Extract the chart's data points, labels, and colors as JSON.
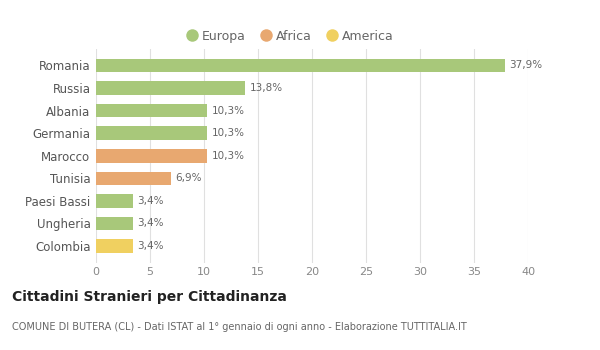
{
  "categories": [
    "Romania",
    "Russia",
    "Albania",
    "Germania",
    "Marocco",
    "Tunisia",
    "Paesi Bassi",
    "Ungheria",
    "Colombia"
  ],
  "values": [
    37.9,
    13.8,
    10.3,
    10.3,
    10.3,
    6.9,
    3.4,
    3.4,
    3.4
  ],
  "labels": [
    "37,9%",
    "13,8%",
    "10,3%",
    "10,3%",
    "10,3%",
    "6,9%",
    "3,4%",
    "3,4%",
    "3,4%"
  ],
  "colors": [
    "#a8c87a",
    "#a8c87a",
    "#a8c87a",
    "#a8c87a",
    "#e8a870",
    "#e8a870",
    "#a8c87a",
    "#a8c87a",
    "#f0d060"
  ],
  "legend_colors": {
    "Europa": "#a8c87a",
    "Africa": "#e8a870",
    "America": "#f0d060"
  },
  "xlim": [
    0,
    40
  ],
  "xticks": [
    0,
    5,
    10,
    15,
    20,
    25,
    30,
    35,
    40
  ],
  "title": "Cittadini Stranieri per Cittadinanza",
  "subtitle": "COMUNE DI BUTERA (CL) - Dati ISTAT al 1° gennaio di ogni anno - Elaborazione TUTTITALIA.IT",
  "background_color": "#ffffff",
  "grid_color": "#e0e0e0",
  "bar_height": 0.6
}
